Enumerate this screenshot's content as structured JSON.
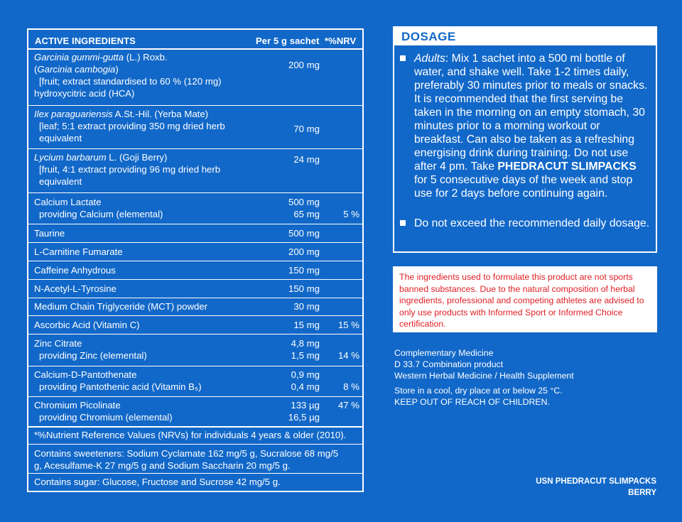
{
  "table": {
    "header": {
      "col1": "ACTIVE INGREDIENTS",
      "col2": "Per 5 g sachet",
      "col3": "*%NRV"
    },
    "rows": [
      {
        "lines": [
          "Garcinia gummi-gutta (L.) Roxb.",
          "(Garcinia cambogia)",
          "[fruit; extract standardised to 60 % (120 mg)",
          "hydroxycitric acid (HCA)"
        ],
        "amount": "200 mg",
        "nrv": ""
      },
      {
        "lines": [
          "Ilex paraguariensis A.St.-Hil. (Yerba Mate)",
          "[leaf; 5:1 extract providing 350 mg dried herb",
          "equivalent"
        ],
        "amount": "70 mg",
        "nrv": ""
      },
      {
        "lines": [
          "Lycium barbarum L. (Goji Berry)",
          "[fruit, 4:1 extract providing 96 mg dried herb",
          "equivalent"
        ],
        "amount": "24 mg",
        "nrv": ""
      },
      {
        "lines": [
          "Calcium Lactate",
          "providing Calcium (elemental)"
        ],
        "amount": "500 mg",
        "amount2": "65 mg",
        "nrv": "5 %"
      },
      {
        "lines": [
          "Taurine"
        ],
        "amount": "500 mg",
        "nrv": ""
      },
      {
        "lines": [
          "L-Carnitine Fumarate"
        ],
        "amount": "200 mg",
        "nrv": ""
      },
      {
        "lines": [
          "Caffeine Anhydrous"
        ],
        "amount": "150 mg",
        "nrv": ""
      },
      {
        "lines": [
          "N-Acetyl-L-Tyrosine"
        ],
        "amount": "150 mg",
        "nrv": ""
      },
      {
        "lines": [
          "Medium Chain Triglyceride (MCT) powder"
        ],
        "amount": "30 mg",
        "nrv": ""
      },
      {
        "lines": [
          "Ascorbic Acid (Vitamin C)"
        ],
        "amount": "15 mg",
        "nrv": "15 %"
      },
      {
        "lines": [
          "Zinc Citrate",
          "providing Zinc (elemental)"
        ],
        "amount": "4,8 mg",
        "amount2": "1,5 mg",
        "nrv": "14 %"
      },
      {
        "lines": [
          "Calcium-D-Pantothenate",
          "providing Pantothenic acid (Vitamin B₅)"
        ],
        "amount": "0,9 mg",
        "amount2": "0,4 mg",
        "nrv": "8 %"
      },
      {
        "lines": [
          "Chromium Picolinate",
          "providing Chromium (elemental)"
        ],
        "amount": "133 µg",
        "amount2": "16,5 µg",
        "nrv": "47 %"
      }
    ],
    "footnote": "*%Nutrient Reference Values (NRVs) for individuals 4 years & older (2010).",
    "sweeteners_1": "Contains sweeteners: Sodium Cyclamate 162 mg/5 g, Sucralose 68 mg/5",
    "sweeteners_2": "g, Acesulfame-K 27 mg/5 g and Sodium Saccharin 20 mg/5 g.",
    "sugar": "Contains sugar: Glucose, Fructose and Sucrose 42 mg/5 g."
  },
  "dosage": {
    "title": "DOSAGE",
    "item1_lead": "Adults",
    "item1_text_a": ": Mix 1 sachet into a 500 ml bottle of water, and shake well. Take 1-2 times daily, preferably 30 minutes prior to meals or snacks. It is recommended that the first serving be taken in the morning on an empty stomach, 30 minutes prior to a morning workout or breakfast. Can also be taken as a refreshing energising drink during training. Do not use after 4 pm. Take ",
    "item1_bold": "PHEDRACUT SLIMPACKS",
    "item1_text_b": " for 5 consecutive days of the week and stop use for 2 days before continuing again.",
    "item2": "Do not exceed the recommended daily dosage."
  },
  "warning": "The ingredients used to formulate this product are not sports banned substances. Due to the natural composition of herbal ingredients, professional and competing athletes are advised to only use products with Informed Sport or Informed Choice certification.",
  "info": {
    "line1": "Complementary Medicine",
    "line2": "D 33.7 Combination product",
    "line3": "Western Herbal Medicine / Health Supplement",
    "store": "Store in a cool, dry place at or below 25 °C.",
    "keep": "KEEP OUT OF REACH OF CHILDREN."
  },
  "brand": {
    "product": "USN PHEDRACUT SLIMPACKS",
    "flavour": "BERRY"
  }
}
